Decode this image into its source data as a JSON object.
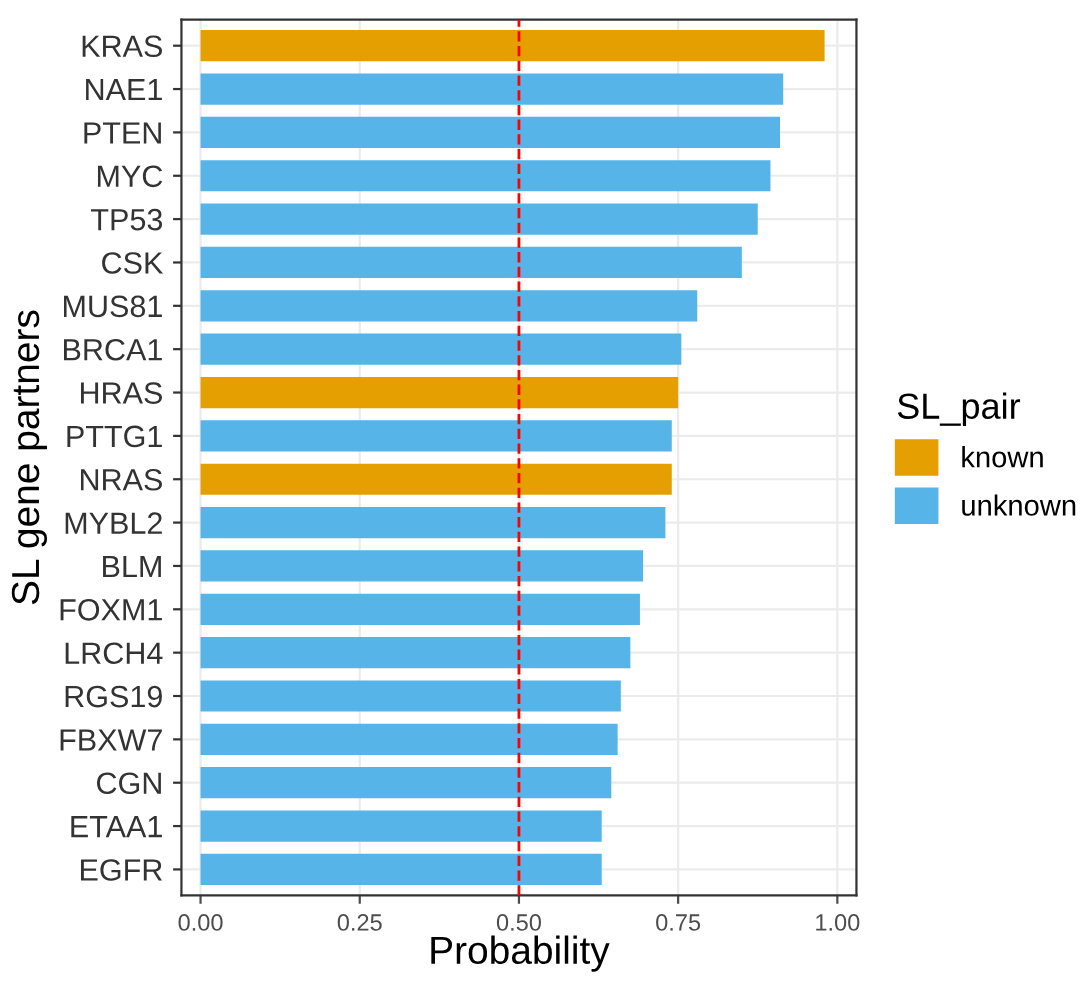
{
  "chart_data": {
    "type": "bar",
    "orientation": "horizontal",
    "xlabel": "Probability",
    "ylabel": "SL gene partners",
    "legend_title": "SL_pair",
    "categories": [
      "KRAS",
      "NAE1",
      "PTEN",
      "MYC",
      "TP53",
      "CSK",
      "MUS81",
      "BRCA1",
      "HRAS",
      "PTTG1",
      "NRAS",
      "MYBL2",
      "BLM",
      "FOXM1",
      "LRCH4",
      "RGS19",
      "FBXW7",
      "CGN",
      "ETAA1",
      "EGFR"
    ],
    "series": [
      {
        "name": "known",
        "color": "#e69f00",
        "values": [
          0.98,
          null,
          null,
          null,
          null,
          null,
          null,
          null,
          0.75,
          null,
          0.74,
          null,
          null,
          null,
          null,
          null,
          null,
          null,
          null,
          null
        ]
      },
      {
        "name": "unknown",
        "color": "#56b4e9",
        "values": [
          null,
          0.915,
          0.91,
          0.895,
          0.875,
          0.85,
          0.78,
          0.755,
          null,
          0.74,
          null,
          0.73,
          0.695,
          0.69,
          0.675,
          0.66,
          0.655,
          0.645,
          0.63,
          0.63
        ]
      }
    ],
    "xlim": [
      -0.03,
      1.03
    ],
    "xticks": [
      {
        "value": 0,
        "label": "0.00"
      },
      {
        "value": 0.25,
        "label": "0.25"
      },
      {
        "value": 0.5,
        "label": "0.50"
      },
      {
        "value": 0.75,
        "label": "0.75"
      },
      {
        "value": 1,
        "label": "1.00"
      }
    ],
    "ref_lines": [
      {
        "axis": "x",
        "value": 0.5,
        "color": "#ff0000",
        "line_style": "dashed"
      }
    ],
    "grid": true,
    "legend": "right"
  }
}
